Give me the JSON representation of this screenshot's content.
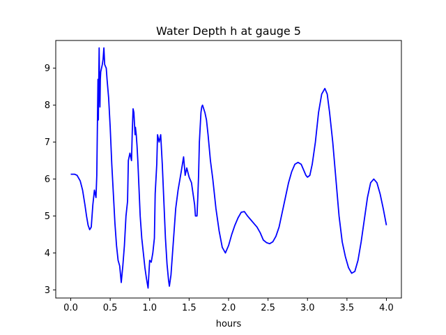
{
  "chart_data": {
    "type": "line",
    "title": "Water Depth h at gauge 5",
    "xlabel": "hours",
    "ylabel": "",
    "xlim": [
      -0.19,
      4.19
    ],
    "ylim": [
      2.78,
      9.75
    ],
    "xticks": [
      0.0,
      0.5,
      1.0,
      1.5,
      2.0,
      2.5,
      3.0,
      3.5,
      4.0
    ],
    "xtick_labels": [
      "0.0",
      "0.5",
      "1.0",
      "1.5",
      "2.0",
      "2.5",
      "3.0",
      "3.5",
      "4.0"
    ],
    "yticks": [
      3,
      4,
      5,
      6,
      7,
      8,
      9
    ],
    "ytick_labels": [
      "3",
      "4",
      "5",
      "6",
      "7",
      "8",
      "9"
    ],
    "grid": false,
    "color": "#0000ff",
    "series": [
      {
        "x": [
          0.0,
          0.05,
          0.08,
          0.12,
          0.15,
          0.18,
          0.2,
          0.22,
          0.24,
          0.26,
          0.28,
          0.3,
          0.32,
          0.33,
          0.345,
          0.35,
          0.355,
          0.36,
          0.365,
          0.37,
          0.375,
          0.38,
          0.385,
          0.39,
          0.4,
          0.41,
          0.42,
          0.43,
          0.44,
          0.45,
          0.46,
          0.48,
          0.5,
          0.52,
          0.54,
          0.56,
          0.58,
          0.6,
          0.62,
          0.64,
          0.66,
          0.68,
          0.7,
          0.72,
          0.73,
          0.75,
          0.77,
          0.78,
          0.79,
          0.8,
          0.81,
          0.815,
          0.82,
          0.83,
          0.84,
          0.85,
          0.86,
          0.87,
          0.88,
          0.89,
          0.9,
          0.92,
          0.94,
          0.96,
          0.98,
          1.0,
          1.02,
          1.04,
          1.06,
          1.07,
          1.08,
          1.09,
          1.1,
          1.12,
          1.14,
          1.15,
          1.16,
          1.18,
          1.2,
          1.22,
          1.24,
          1.25,
          1.27,
          1.3,
          1.33,
          1.36,
          1.4,
          1.43,
          1.45,
          1.47,
          1.5,
          1.53,
          1.55,
          1.57,
          1.58,
          1.6,
          1.61,
          1.62,
          1.63,
          1.64,
          1.65,
          1.66,
          1.67,
          1.7,
          1.72,
          1.74,
          1.77,
          1.8,
          1.84,
          1.88,
          1.92,
          1.96,
          2.0,
          2.04,
          2.08,
          2.12,
          2.16,
          2.2,
          2.24,
          2.28,
          2.32,
          2.36,
          2.4,
          2.44,
          2.48,
          2.52,
          2.56,
          2.6,
          2.64,
          2.68,
          2.72,
          2.76,
          2.8,
          2.84,
          2.88,
          2.92,
          2.95,
          2.98,
          3.0,
          3.03,
          3.06,
          3.1,
          3.14,
          3.18,
          3.22,
          3.25,
          3.28,
          3.32,
          3.36,
          3.4,
          3.44,
          3.48,
          3.52,
          3.56,
          3.6,
          3.64,
          3.68,
          3.72,
          3.76,
          3.8,
          3.84,
          3.88,
          3.92,
          3.96,
          4.0
        ],
        "values": [
          6.13,
          6.13,
          6.1,
          5.95,
          5.7,
          5.3,
          5.0,
          4.75,
          4.63,
          4.7,
          5.3,
          5.7,
          5.5,
          6.1,
          8.7,
          7.6,
          8.7,
          9.55,
          8.6,
          7.95,
          8.7,
          8.9,
          8.95,
          9.0,
          9.1,
          9.25,
          9.55,
          9.1,
          9.05,
          9.0,
          8.7,
          8.2,
          7.4,
          6.4,
          5.6,
          4.8,
          4.2,
          3.8,
          3.65,
          3.2,
          3.65,
          4.2,
          5.0,
          5.4,
          6.5,
          6.7,
          6.5,
          7.3,
          7.9,
          7.8,
          7.4,
          7.2,
          7.4,
          7.2,
          6.9,
          6.5,
          6.0,
          5.5,
          5.0,
          4.7,
          4.4,
          4.0,
          3.6,
          3.3,
          3.05,
          3.8,
          3.75,
          4.0,
          4.4,
          5.6,
          6.0,
          6.4,
          7.2,
          7.0,
          7.2,
          6.8,
          6.4,
          5.4,
          4.4,
          3.7,
          3.25,
          3.1,
          3.4,
          4.3,
          5.2,
          5.7,
          6.2,
          6.6,
          6.1,
          6.3,
          6.05,
          5.9,
          5.6,
          5.3,
          5.0,
          5.0,
          5.5,
          6.1,
          7.0,
          7.4,
          7.8,
          7.95,
          8.0,
          7.8,
          7.6,
          7.2,
          6.5,
          6.0,
          5.2,
          4.6,
          4.15,
          4.0,
          4.2,
          4.5,
          4.75,
          4.95,
          5.1,
          5.12,
          5.0,
          4.9,
          4.8,
          4.7,
          4.55,
          4.35,
          4.28,
          4.25,
          4.3,
          4.45,
          4.7,
          5.1,
          5.5,
          5.9,
          6.2,
          6.4,
          6.45,
          6.4,
          6.25,
          6.1,
          6.05,
          6.1,
          6.4,
          7.0,
          7.8,
          8.3,
          8.45,
          8.3,
          7.8,
          7.0,
          6.0,
          5.0,
          4.3,
          3.9,
          3.6,
          3.45,
          3.5,
          3.8,
          4.3,
          4.9,
          5.5,
          5.9,
          6.0,
          5.9,
          5.6,
          5.2,
          4.75
        ]
      }
    ]
  }
}
